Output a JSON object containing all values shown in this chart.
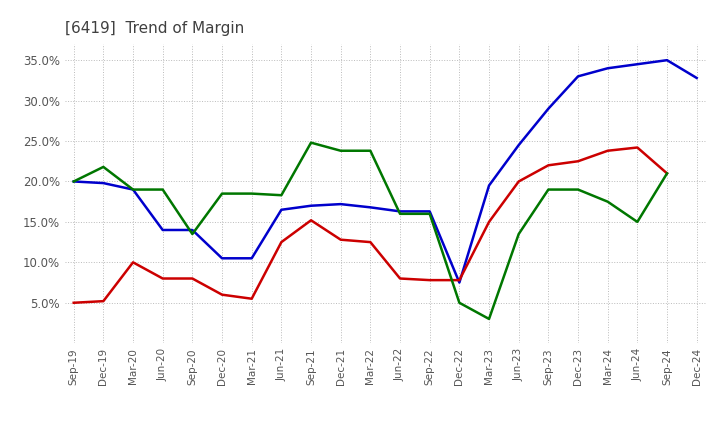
{
  "title": "[6419]  Trend of Margin",
  "title_color": "#404040",
  "x_labels": [
    "Sep-19",
    "Dec-19",
    "Mar-20",
    "Jun-20",
    "Sep-20",
    "Dec-20",
    "Mar-21",
    "Jun-21",
    "Sep-21",
    "Dec-21",
    "Mar-22",
    "Jun-22",
    "Sep-22",
    "Dec-22",
    "Mar-23",
    "Jun-23",
    "Sep-23",
    "Dec-23",
    "Mar-24",
    "Jun-24",
    "Sep-24",
    "Dec-24"
  ],
  "ylim": [
    0.0,
    0.37
  ],
  "yticks": [
    0.05,
    0.1,
    0.15,
    0.2,
    0.25,
    0.3,
    0.35
  ],
  "ordinary_income": [
    0.2,
    0.198,
    0.19,
    0.14,
    0.14,
    0.105,
    0.105,
    0.165,
    0.17,
    0.172,
    0.168,
    0.163,
    0.163,
    0.075,
    0.195,
    0.245,
    0.29,
    0.33,
    0.34,
    0.345,
    0.35,
    0.328
  ],
  "net_income": [
    0.05,
    0.052,
    0.1,
    0.08,
    0.08,
    0.06,
    0.055,
    0.125,
    0.152,
    0.128,
    0.125,
    0.08,
    0.078,
    0.078,
    0.15,
    0.2,
    0.22,
    0.225,
    0.238,
    0.242,
    0.21,
    null
  ],
  "operating_cf": [
    0.2,
    0.218,
    0.19,
    0.19,
    0.135,
    0.185,
    0.185,
    0.183,
    0.248,
    0.238,
    0.238,
    0.16,
    0.16,
    0.05,
    0.03,
    0.135,
    0.19,
    0.19,
    0.175,
    0.15,
    0.21,
    null
  ],
  "line_color_oi": "#0000cc",
  "line_color_ni": "#cc0000",
  "line_color_cf": "#007700",
  "grid_color": "#bbbbbb",
  "bg_color": "#ffffff"
}
